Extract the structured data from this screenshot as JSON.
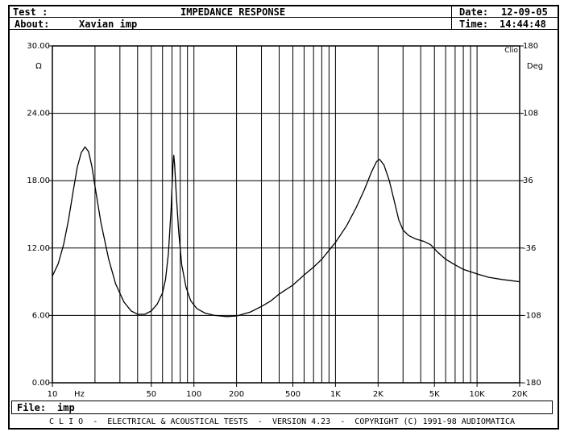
{
  "header": {
    "test_label": "Test :",
    "title": "IMPEDANCE RESPONSE",
    "about_label": "About:",
    "about_value": "Xavian imp",
    "date_label": "Date:",
    "date_value": "12-09-05",
    "time_label": "Time:",
    "time_value": "14:44:48"
  },
  "file": {
    "label": "File:",
    "value": "imp"
  },
  "footer": {
    "text": "C L I O  -  ELECTRICAL & ACOUSTICAL TESTS  -  VERSION 4.23  -  COPYRIGHT (C) 1991-98 AUDIOMATICA"
  },
  "chart_data": {
    "type": "line",
    "title": "IMPEDANCE RESPONSE",
    "xscale": "log",
    "xlim": [
      10,
      20000
    ],
    "ylim": [
      0,
      30
    ],
    "y2lim": [
      -180,
      180
    ],
    "ylabel": "Ω",
    "y2label": "Deg",
    "xunit": "Hz",
    "corner_label": "Clio",
    "grid": true,
    "x_ticks": [
      {
        "value": 10,
        "label": "10"
      },
      {
        "value": 50,
        "label": "50"
      },
      {
        "value": 100,
        "label": "100"
      },
      {
        "value": 200,
        "label": "200"
      },
      {
        "value": 500,
        "label": "500"
      },
      {
        "value": 1000,
        "label": "1K"
      },
      {
        "value": 2000,
        "label": "2K"
      },
      {
        "value": 5000,
        "label": "5K"
      },
      {
        "value": 10000,
        "label": "10K"
      },
      {
        "value": 20000,
        "label": "20K"
      }
    ],
    "y_ticks": [
      {
        "value": 0,
        "label": "0.00"
      },
      {
        "value": 6,
        "label": "6.00"
      },
      {
        "value": 12,
        "label": "12.00"
      },
      {
        "value": 18,
        "label": "18.00"
      },
      {
        "value": 24,
        "label": "24.00"
      },
      {
        "value": 30,
        "label": "30.00"
      }
    ],
    "y2_ticks": [
      {
        "value": -180,
        "label": "-180"
      },
      {
        "value": -108,
        "label": "-108"
      },
      {
        "value": -36,
        "label": "-36"
      },
      {
        "value": 36,
        "label": "36"
      },
      {
        "value": 108,
        "label": "108"
      },
      {
        "value": 180,
        "label": "180"
      }
    ],
    "series": [
      {
        "color": "#000000",
        "points": [
          [
            10,
            9.5
          ],
          [
            11,
            10.6
          ],
          [
            12,
            12.3
          ],
          [
            13,
            14.5
          ],
          [
            14,
            17.0
          ],
          [
            15,
            19.2
          ],
          [
            16,
            20.5
          ],
          [
            17,
            21.0
          ],
          [
            18,
            20.6
          ],
          [
            19,
            19.3
          ],
          [
            20,
            17.5
          ],
          [
            22,
            14.3
          ],
          [
            25,
            11.0
          ],
          [
            28,
            8.8
          ],
          [
            32,
            7.2
          ],
          [
            36,
            6.4
          ],
          [
            40,
            6.1
          ],
          [
            45,
            6.1
          ],
          [
            50,
            6.4
          ],
          [
            55,
            7.0
          ],
          [
            60,
            8.0
          ],
          [
            63,
            9.2
          ],
          [
            66,
            11.5
          ],
          [
            69,
            15.5
          ],
          [
            71,
            19.2
          ],
          [
            72,
            20.3
          ],
          [
            73,
            19.5
          ],
          [
            75,
            16.8
          ],
          [
            78,
            13.5
          ],
          [
            82,
            10.5
          ],
          [
            88,
            8.5
          ],
          [
            95,
            7.3
          ],
          [
            105,
            6.6
          ],
          [
            120,
            6.2
          ],
          [
            140,
            6.0
          ],
          [
            170,
            5.9
          ],
          [
            200,
            5.95
          ],
          [
            250,
            6.3
          ],
          [
            300,
            6.8
          ],
          [
            350,
            7.3
          ],
          [
            400,
            7.9
          ],
          [
            500,
            8.7
          ],
          [
            600,
            9.6
          ],
          [
            700,
            10.3
          ],
          [
            800,
            11.0
          ],
          [
            1000,
            12.5
          ],
          [
            1200,
            14.0
          ],
          [
            1400,
            15.6
          ],
          [
            1600,
            17.2
          ],
          [
            1800,
            18.8
          ],
          [
            1950,
            19.7
          ],
          [
            2050,
            19.9
          ],
          [
            2200,
            19.4
          ],
          [
            2400,
            18.0
          ],
          [
            2600,
            16.2
          ],
          [
            2800,
            14.5
          ],
          [
            3000,
            13.6
          ],
          [
            3300,
            13.1
          ],
          [
            3700,
            12.8
          ],
          [
            4200,
            12.6
          ],
          [
            4700,
            12.3
          ],
          [
            5200,
            11.7
          ],
          [
            6000,
            11.0
          ],
          [
            7000,
            10.5
          ],
          [
            8000,
            10.1
          ],
          [
            10000,
            9.7
          ],
          [
            12000,
            9.4
          ],
          [
            15000,
            9.2
          ],
          [
            20000,
            9.0
          ]
        ]
      }
    ]
  }
}
